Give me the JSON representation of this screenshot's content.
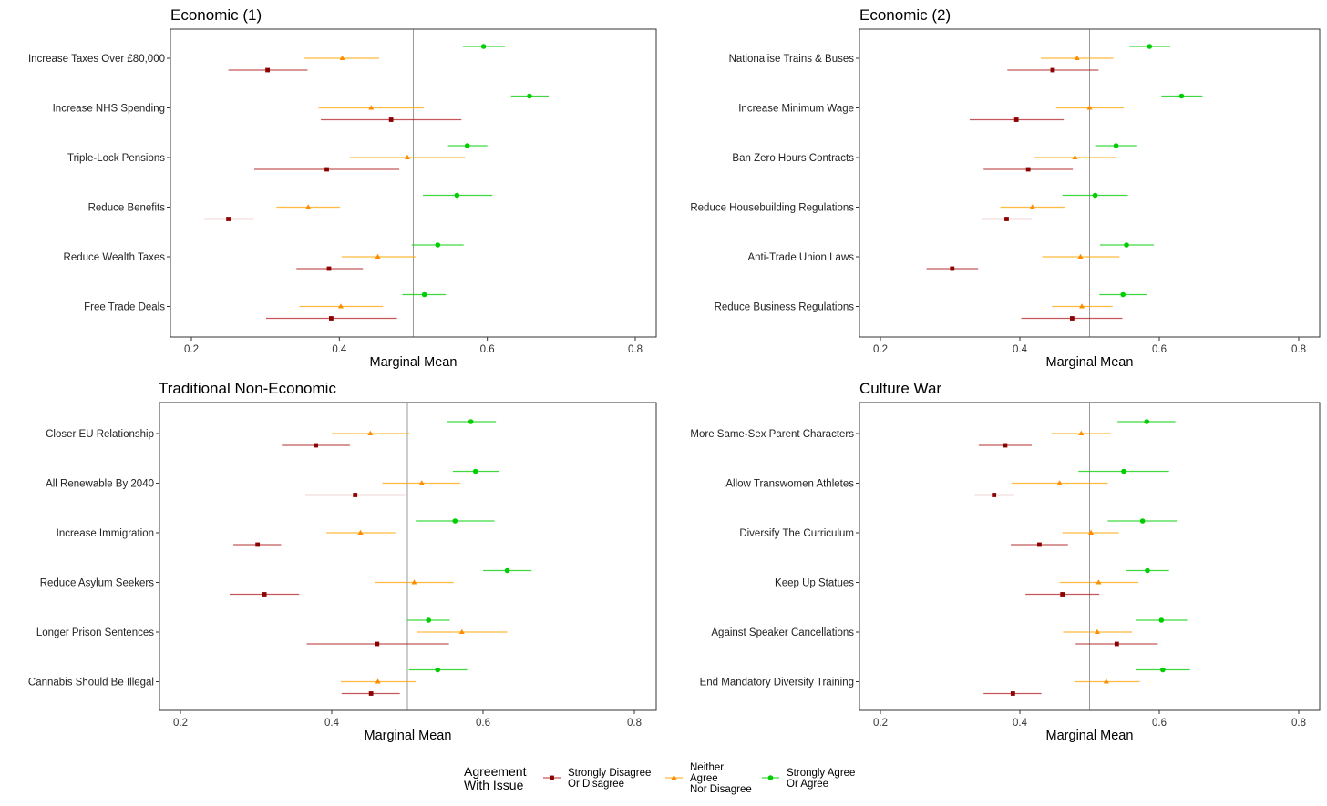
{
  "chart_data": [
    {
      "type": "scatter",
      "title": "Economic (1)",
      "xlabel": "Marginal Mean",
      "xticks": [
        0.2,
        0.4,
        0.6,
        0.8
      ],
      "reference_line": 0.5,
      "categories": [
        "Increase Taxes Over £80,000",
        "Increase NHS Spending",
        "Triple-Lock Pensions",
        "Reduce Benefits",
        "Reduce Wealth Taxes",
        "Free Trade Deals"
      ],
      "series": [
        {
          "name": "Strongly Agree Or Agree",
          "estimate": [
            0.595,
            0.657,
            0.573,
            0.559,
            0.533,
            0.515
          ],
          "lower": [
            0.567,
            0.632,
            0.547,
            0.513,
            0.498,
            0.485
          ],
          "upper": [
            0.624,
            0.683,
            0.6,
            0.607,
            0.568,
            0.544
          ]
        },
        {
          "name": "Neither Agree Nor Disagree",
          "estimate": [
            0.404,
            0.443,
            0.492,
            0.358,
            0.452,
            0.402
          ],
          "lower": [
            0.353,
            0.372,
            0.414,
            0.315,
            0.403,
            0.346
          ],
          "upper": [
            0.454,
            0.514,
            0.57,
            0.401,
            0.503,
            0.459
          ]
        },
        {
          "name": "Strongly Disagree Or Disagree",
          "estimate": [
            0.303,
            0.47,
            0.383,
            0.25,
            0.386,
            0.389
          ],
          "lower": [
            0.25,
            0.375,
            0.285,
            0.217,
            0.342,
            0.301
          ],
          "upper": [
            0.357,
            0.565,
            0.481,
            0.284,
            0.432,
            0.478
          ]
        }
      ]
    },
    {
      "type": "scatter",
      "title": "Economic (2)",
      "xlabel": "Marginal Mean",
      "xticks": [
        0.2,
        0.4,
        0.6,
        0.8
      ],
      "reference_line": 0.5,
      "categories": [
        "Nationalise Trains & Buses",
        "Increase Minimum Wage",
        "Ban Zero Hours Contracts",
        "Reduce Housebuilding Regulations",
        "Anti-Trade Union Laws",
        "Reduce Business Regulations"
      ],
      "series": [
        {
          "name": "Strongly Agree Or Agree",
          "estimate": [
            0.586,
            0.632,
            0.538,
            0.508,
            0.553,
            0.548
          ],
          "lower": [
            0.557,
            0.603,
            0.508,
            0.461,
            0.515,
            0.514
          ],
          "upper": [
            0.616,
            0.662,
            0.567,
            0.555,
            0.592,
            0.583
          ]
        },
        {
          "name": "Neither Agree Nor Disagree",
          "estimate": [
            0.482,
            0.5,
            0.479,
            0.418,
            0.487,
            0.489
          ],
          "lower": [
            0.43,
            0.452,
            0.421,
            0.372,
            0.432,
            0.446
          ],
          "upper": [
            0.534,
            0.549,
            0.539,
            0.465,
            0.543,
            0.533
          ]
        },
        {
          "name": "Strongly Disagree Or Disagree",
          "estimate": [
            0.447,
            0.395,
            0.412,
            0.381,
            0.303,
            0.475
          ],
          "lower": [
            0.382,
            0.328,
            0.348,
            0.346,
            0.266,
            0.402
          ],
          "upper": [
            0.513,
            0.463,
            0.476,
            0.417,
            0.34,
            0.547
          ]
        }
      ]
    },
    {
      "type": "scatter",
      "title": "Traditional Non-Economic",
      "xlabel": "Marginal Mean",
      "xticks": [
        0.2,
        0.4,
        0.6,
        0.8
      ],
      "reference_line": 0.5,
      "categories": [
        "Closer EU Relationship",
        "All Renewable By 2040",
        "Increase Immigration",
        "Reduce Asylum Seekers",
        "Longer Prison Sentences",
        "Cannabis Should Be Illegal"
      ],
      "series": [
        {
          "name": "Strongly Agree Or Agree",
          "estimate": [
            0.584,
            0.59,
            0.563,
            0.632,
            0.528,
            0.54
          ],
          "lower": [
            0.552,
            0.56,
            0.511,
            0.6,
            0.5,
            0.502
          ],
          "upper": [
            0.617,
            0.621,
            0.615,
            0.664,
            0.556,
            0.579
          ]
        },
        {
          "name": "Neither Agree Nor Disagree",
          "estimate": [
            0.451,
            0.519,
            0.438,
            0.509,
            0.572,
            0.461
          ],
          "lower": [
            0.4,
            0.467,
            0.393,
            0.457,
            0.513,
            0.412
          ],
          "upper": [
            0.503,
            0.57,
            0.484,
            0.561,
            0.632,
            0.511
          ]
        },
        {
          "name": "Strongly Disagree Or Disagree",
          "estimate": [
            0.379,
            0.431,
            0.302,
            0.311,
            0.46,
            0.452
          ],
          "lower": [
            0.334,
            0.365,
            0.27,
            0.265,
            0.367,
            0.413
          ],
          "upper": [
            0.424,
            0.497,
            0.333,
            0.357,
            0.555,
            0.49
          ]
        }
      ]
    },
    {
      "type": "scatter",
      "title": "Culture War",
      "xlabel": "Marginal Mean",
      "xticks": [
        0.2,
        0.4,
        0.6,
        0.8
      ],
      "reference_line": 0.5,
      "categories": [
        "More Same-Sex Parent Characters",
        "Allow Transwomen Athletes",
        "Diversify The Curriculum",
        "Keep Up Statues",
        "Against Speaker Cancellations",
        "End Mandatory Diversity Training"
      ],
      "series": [
        {
          "name": "Strongly Agree Or Agree",
          "estimate": [
            0.582,
            0.549,
            0.576,
            0.583,
            0.603,
            0.605
          ],
          "lower": [
            0.54,
            0.484,
            0.526,
            0.552,
            0.566,
            0.566
          ],
          "upper": [
            0.623,
            0.614,
            0.625,
            0.614,
            0.64,
            0.644
          ]
        },
        {
          "name": "Neither Agree Nor Disagree",
          "estimate": [
            0.488,
            0.457,
            0.502,
            0.513,
            0.511,
            0.524
          ],
          "lower": [
            0.445,
            0.388,
            0.461,
            0.457,
            0.462,
            0.478
          ],
          "upper": [
            0.53,
            0.526,
            0.542,
            0.57,
            0.561,
            0.572
          ]
        },
        {
          "name": "Strongly Disagree Or Disagree",
          "estimate": [
            0.379,
            0.363,
            0.428,
            0.461,
            0.539,
            0.39
          ],
          "lower": [
            0.341,
            0.335,
            0.387,
            0.408,
            0.48,
            0.348
          ],
          "upper": [
            0.417,
            0.392,
            0.469,
            0.514,
            0.598,
            0.431
          ]
        }
      ]
    }
  ],
  "legend": {
    "title_line1": "Agreement",
    "title_line2": "With Issue",
    "placement": "bottom",
    "items": [
      {
        "lines": [
          "Strongly Disagree",
          "Or Disagree"
        ],
        "color": "#8B0000",
        "line_color": "#B22222",
        "shape": "square"
      },
      {
        "lines": [
          "Neither",
          "Agree",
          "Nor Disagree"
        ],
        "color": "#FF8C00",
        "line_color": "#FFA500",
        "shape": "triangle"
      },
      {
        "lines": [
          "Strongly Agree",
          "Or Agree"
        ],
        "color": "#00CD00",
        "line_color": "#00CD00",
        "shape": "circle"
      }
    ]
  },
  "series_style": {
    "Strongly Agree Or Agree": {
      "color": "#00CD00",
      "line_color": "#00CD00",
      "shape": "circle"
    },
    "Neither Agree Nor Disagree": {
      "color": "#FF8C00",
      "line_color": "#FFA500",
      "shape": "triangle"
    },
    "Strongly Disagree Or Disagree": {
      "color": "#8B0000",
      "line_color": "#B22222",
      "shape": "square"
    }
  }
}
